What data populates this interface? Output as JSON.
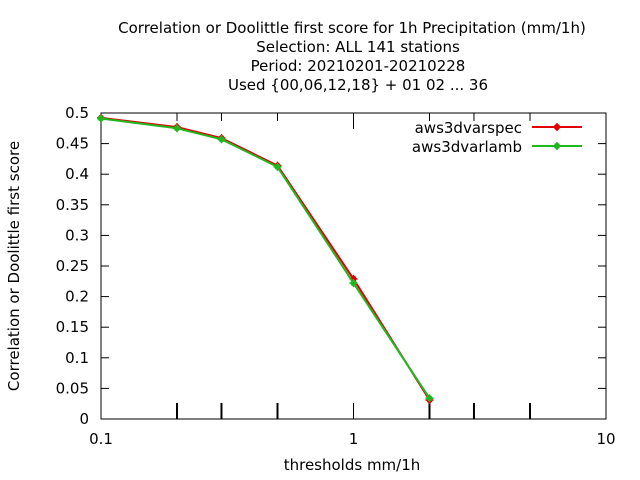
{
  "chart_data": {
    "type": "line",
    "title_lines": [
      "Correlation or Doolittle first score  for 1h Precipitation (mm/1h)",
      "Selection: ALL    141 stations",
      "Period: 20210201-20210228",
      "Used {00,06,12,18} + 01 02 ... 36"
    ],
    "xlabel": "thresholds mm/1h",
    "ylabel": "Correlation or Doolittle first score",
    "xscale": "log",
    "xlim": [
      0.1,
      10
    ],
    "ylim": [
      0,
      0.5
    ],
    "x_ticks": [
      {
        "value": 0.1,
        "label": "0.1"
      },
      {
        "value": 1,
        "label": "1"
      },
      {
        "value": 10,
        "label": "10"
      }
    ],
    "x_minor_ticks": [
      0.2,
      0.3,
      0.5,
      2,
      3,
      5
    ],
    "y_ticks": [
      {
        "value": 0,
        "label": "0"
      },
      {
        "value": 0.05,
        "label": "0.05"
      },
      {
        "value": 0.1,
        "label": "0.1"
      },
      {
        "value": 0.15,
        "label": "0.15"
      },
      {
        "value": 0.2,
        "label": "0.2"
      },
      {
        "value": 0.25,
        "label": "0.25"
      },
      {
        "value": 0.3,
        "label": "0.3"
      },
      {
        "value": 0.35,
        "label": "0.35"
      },
      {
        "value": 0.4,
        "label": "0.4"
      },
      {
        "value": 0.45,
        "label": "0.45"
      },
      {
        "value": 0.5,
        "label": "0.5"
      }
    ],
    "grid": false,
    "legend_position": "top-right",
    "series": [
      {
        "name": "aws3dvarspec",
        "color": "#e00000",
        "marker": "plus-circle",
        "x": [
          0.1,
          0.2,
          0.3,
          0.5,
          1,
          2
        ],
        "y": [
          0.492,
          0.477,
          0.459,
          0.414,
          0.229,
          0.031
        ]
      },
      {
        "name": "aws3dvarlamb",
        "color": "#1fb81f",
        "marker": "plus-circle",
        "x": [
          0.1,
          0.2,
          0.3,
          0.5,
          1,
          2
        ],
        "y": [
          0.491,
          0.475,
          0.457,
          0.412,
          0.222,
          0.034
        ]
      }
    ]
  }
}
